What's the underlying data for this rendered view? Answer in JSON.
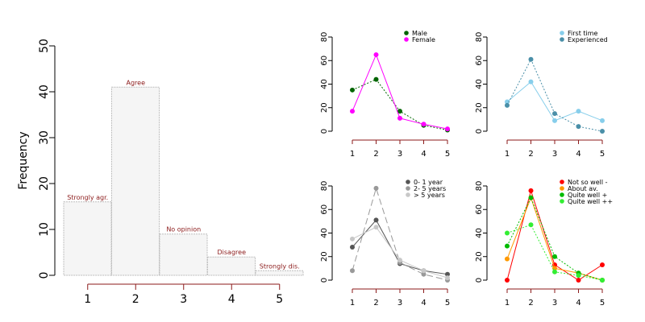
{
  "chart_data": [
    {
      "type": "bar",
      "categories": [
        "1",
        "2",
        "3",
        "4",
        "5"
      ],
      "values": [
        16,
        41,
        9,
        4,
        1
      ],
      "bar_labels": [
        "Strongly agr.",
        "Agree",
        "No opinion",
        "Disagree",
        "Strongly dis."
      ],
      "ylabel": "Frequency",
      "ylim": [
        0,
        50
      ],
      "yticks": [
        0,
        10,
        20,
        30,
        40,
        50
      ],
      "colors": {
        "bar_fill": "#f5f5f5",
        "bar_border": "#bdbdbd",
        "label": "#8b1a1a",
        "x_axis": "#8b1a1a"
      }
    },
    {
      "type": "line",
      "x": [
        1,
        2,
        3,
        4,
        5
      ],
      "ylim": [
        0,
        80
      ],
      "yticks": [
        0,
        20,
        40,
        60,
        80
      ],
      "legend": "top-right",
      "series": [
        {
          "name": "Male",
          "values": [
            35,
            44,
            17,
            5,
            1
          ],
          "color": "#006400",
          "dash": "2,2"
        },
        {
          "name": "Female",
          "values": [
            17,
            65,
            11,
            6,
            2
          ],
          "color": "#ff00ff",
          "dash": ""
        }
      ]
    },
    {
      "type": "line",
      "x": [
        1,
        2,
        3,
        4,
        5
      ],
      "ylim": [
        0,
        80
      ],
      "yticks": [
        0,
        20,
        40,
        60,
        80
      ],
      "legend": "top-right",
      "series": [
        {
          "name": "First time",
          "values": [
            25,
            42,
            9,
            17,
            9
          ],
          "color": "#87ceeb",
          "dash": ""
        },
        {
          "name": "Experienced",
          "values": [
            22,
            61,
            15,
            4,
            0
          ],
          "color": "#4a8fa8",
          "dash": "2,2"
        }
      ]
    },
    {
      "type": "line",
      "x": [
        1,
        2,
        3,
        4,
        5
      ],
      "ylim": [
        0,
        80
      ],
      "yticks": [
        0,
        20,
        40,
        60,
        80
      ],
      "legend": "top-right",
      "series": [
        {
          "name": "0- 1 year",
          "values": [
            28,
            51,
            14,
            8,
            5
          ],
          "color": "#555555",
          "dash": ""
        },
        {
          "name": "2- 5 years",
          "values": [
            8,
            78,
            15,
            5,
            0
          ],
          "color": "#999999",
          "dash": "8,4"
        },
        {
          "name": "> 5 years",
          "values": [
            35,
            45,
            17,
            8,
            2
          ],
          "color": "#c8c8c8",
          "dash": ""
        }
      ]
    },
    {
      "type": "line",
      "x": [
        1,
        2,
        3,
        4,
        5
      ],
      "ylim": [
        0,
        80
      ],
      "yticks": [
        0,
        20,
        40,
        60,
        80
      ],
      "legend": "top-right",
      "series": [
        {
          "name": "Not so well -",
          "values": [
            0,
            76,
            13,
            0,
            13
          ],
          "color": "#ff0000",
          "dash": ""
        },
        {
          "name": "About av.",
          "values": [
            18,
            70,
            10,
            6,
            0
          ],
          "color": "#ff9900",
          "dash": ""
        },
        {
          "name": "Quite well +",
          "values": [
            29,
            70,
            20,
            6,
            0
          ],
          "color": "#00bb00",
          "dash": "2,2"
        },
        {
          "name": "Quite well ++",
          "values": [
            40,
            47,
            7,
            4,
            0
          ],
          "color": "#33ee33",
          "dash": "2,2"
        }
      ]
    }
  ]
}
